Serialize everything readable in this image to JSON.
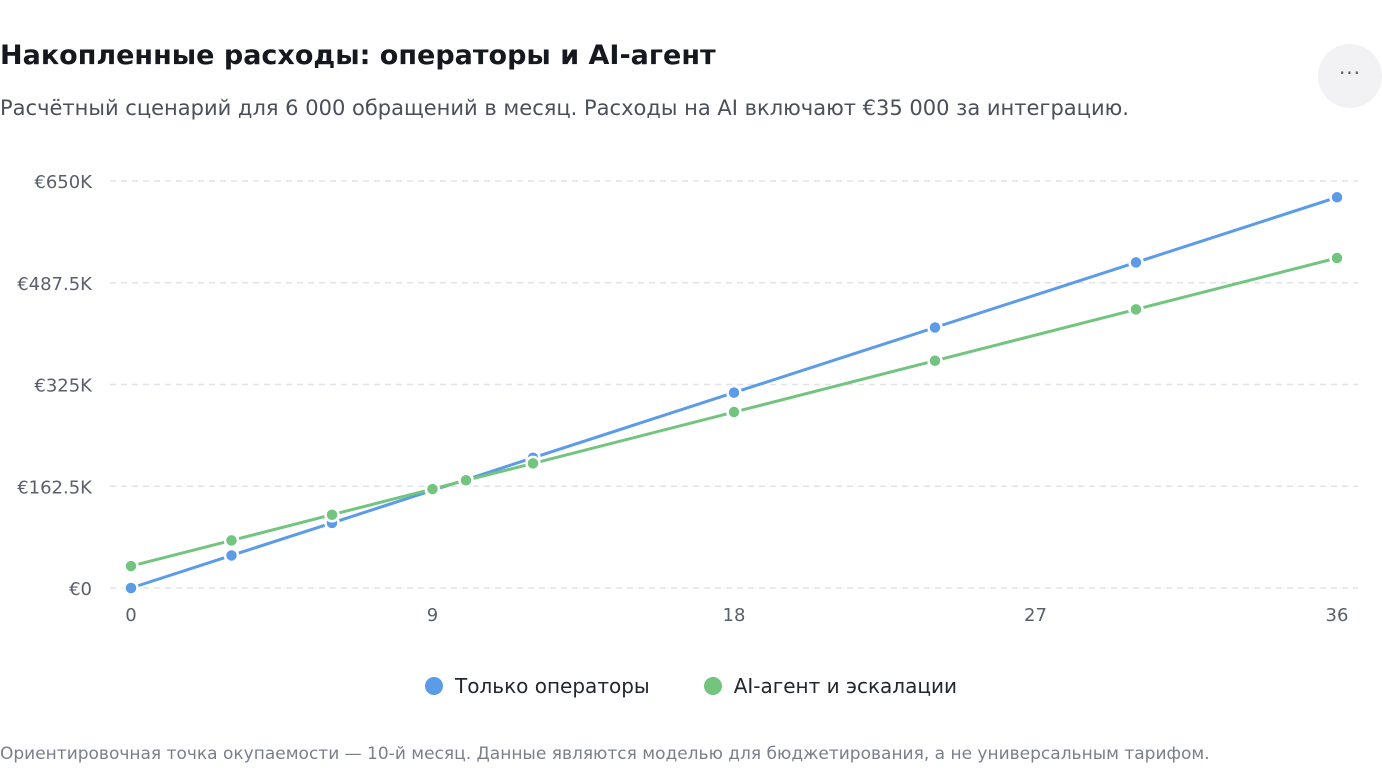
{
  "header": {
    "title": "Накопленные расходы: операторы и AI-агент",
    "subtitle": "Расчётный сценарий для 6 000 обращений в месяц. Расходы на AI включают €35 000 за интеграцию.",
    "menu_icon": "more-horizontal-icon",
    "menu_label": "···"
  },
  "chart_data": {
    "type": "line",
    "title": "Накопленные расходы: операторы и AI-агент",
    "xlabel": "",
    "ylabel": "",
    "xlim": [
      0,
      36
    ],
    "ylim": [
      0,
      650000
    ],
    "x_ticks": [
      0,
      9,
      18,
      27,
      36
    ],
    "y_ticks": [
      0,
      162500,
      325000,
      487500,
      650000
    ],
    "y_tick_labels": [
      "€0",
      "€162.5K",
      "€325K",
      "€487.5K",
      "€650K"
    ],
    "grid": true,
    "legend_position": "bottom",
    "series": [
      {
        "name": "Только операторы",
        "color": "#5b9be8",
        "points": [
          [
            0,
            0
          ],
          [
            3,
            52000
          ],
          [
            6,
            104000
          ],
          [
            9,
            156000
          ],
          [
            10,
            173000
          ],
          [
            12,
            208000
          ],
          [
            18,
            312000
          ],
          [
            24,
            416000
          ],
          [
            30,
            520000
          ],
          [
            36,
            624000
          ]
        ]
      },
      {
        "name": "AI-агент и эскалации",
        "color": "#72c47f",
        "points": [
          [
            0,
            35000
          ],
          [
            3,
            76000
          ],
          [
            6,
            117000
          ],
          [
            9,
            158000
          ],
          [
            10,
            172000
          ],
          [
            12,
            199000
          ],
          [
            18,
            281000
          ],
          [
            24,
            363000
          ],
          [
            30,
            445000
          ],
          [
            36,
            527000
          ]
        ]
      }
    ]
  },
  "footnote": "Ориентировочная точка окупаемости — 10-й месяц. Данные являются моделью для бюджетирования, а не универсальным тарифом."
}
